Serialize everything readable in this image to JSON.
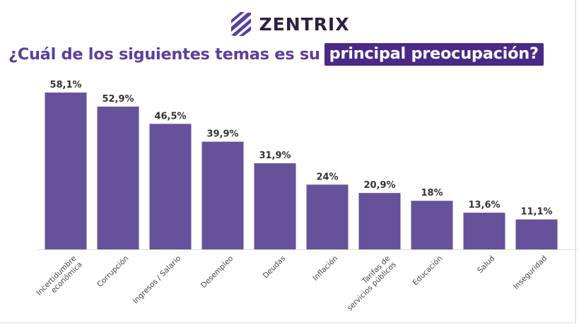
{
  "brand": {
    "name": "ZENTRIX",
    "logo_icon": "zentrix-logo-icon",
    "color": "#2b2240"
  },
  "title": {
    "prefix": "¿Cuál de los siguientes temas es su",
    "highlight": "principal preocupación?",
    "color": "#5b3f9c",
    "highlight_bg": "#4a2a86"
  },
  "chart_data": {
    "type": "bar",
    "categories": [
      "Incertidumbre económica",
      "Corrupción",
      "Ingresos / Salario",
      "Desempleo",
      "Deudas",
      "Inflación",
      "Tarifas de servicios públicos",
      "Educación",
      "Salud",
      "Inseguridad"
    ],
    "values": [
      58.1,
      52.9,
      46.5,
      39.9,
      31.9,
      24,
      20.9,
      18,
      13.6,
      11.1
    ],
    "data_labels": [
      "58,1%",
      "52,9%",
      "46,5%",
      "39,9%",
      "31,9%",
      "24%",
      "20,9%",
      "18%",
      "13,6%",
      "11,1%"
    ],
    "title": "¿Cuál de los siguientes temas es su principal preocupación?",
    "xlabel": "",
    "ylabel": "",
    "ylim": [
      0,
      58.1
    ],
    "grid": false,
    "legend": "none",
    "bar_color": "#66519b",
    "label_rotation_deg": -45
  }
}
